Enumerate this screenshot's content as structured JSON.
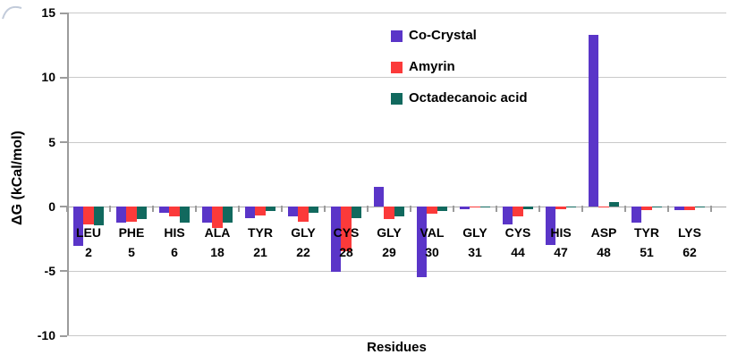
{
  "page": {
    "background": "#ffffff"
  },
  "chart_data": {
    "type": "bar",
    "title": "",
    "xlabel": "Residues",
    "ylabel": "ΔG (kCal/mol)",
    "ylim": [
      -10,
      15
    ],
    "yticks": [
      15,
      10,
      5,
      0,
      -5,
      -10
    ],
    "grid": true,
    "legend_position": "top-center-right, vertical",
    "categories": [
      {
        "name": "LEU",
        "num": "2"
      },
      {
        "name": "PHE",
        "num": "5"
      },
      {
        "name": "HIS",
        "num": "6"
      },
      {
        "name": "ALA",
        "num": "18"
      },
      {
        "name": "TYR",
        "num": "21"
      },
      {
        "name": "GLY",
        "num": "22"
      },
      {
        "name": "CYS",
        "num": "28"
      },
      {
        "name": "GLY",
        "num": "29"
      },
      {
        "name": "VAL",
        "num": "30"
      },
      {
        "name": "GLY",
        "num": "31"
      },
      {
        "name": "CYS",
        "num": "44"
      },
      {
        "name": "HIS",
        "num": "47"
      },
      {
        "name": "ASP",
        "num": "48"
      },
      {
        "name": "TYR",
        "num": "51"
      },
      {
        "name": "LYS",
        "num": "62"
      }
    ],
    "series": [
      {
        "name": "Co-Crystal",
        "color": "#5a35c8",
        "values": [
          -3.1,
          -1.3,
          -0.5,
          -1.3,
          -0.9,
          -0.8,
          -5.1,
          1.5,
          -5.5,
          -0.2,
          -1.4,
          -3.0,
          13.3,
          -1.3,
          -0.3
        ]
      },
      {
        "name": "Amyrin",
        "color": "#fb3a3a",
        "values": [
          -1.4,
          -1.2,
          -0.8,
          -1.7,
          -0.7,
          -1.2,
          -3.5,
          -1.0,
          -0.6,
          -0.05,
          -0.8,
          -0.2,
          -0.1,
          -0.3,
          -0.3
        ]
      },
      {
        "name": "Octadecanoic acid",
        "color": "#11695e",
        "values": [
          -1.5,
          -1.0,
          -1.3,
          -1.3,
          -0.4,
          -0.5,
          -0.9,
          -0.8,
          -0.4,
          -0.05,
          -0.2,
          -0.1,
          0.3,
          -0.1,
          -0.1
        ]
      }
    ]
  }
}
